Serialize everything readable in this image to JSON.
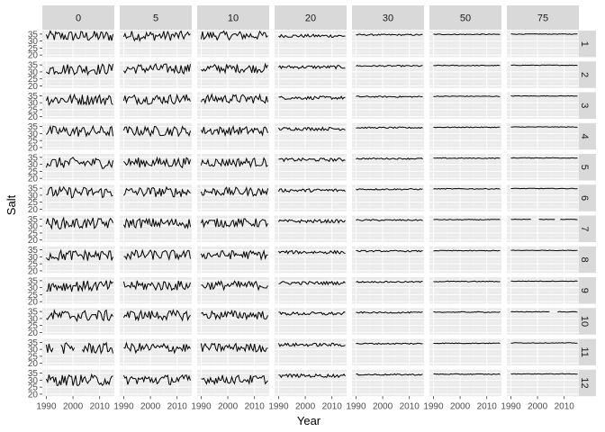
{
  "chart_data": {
    "type": "line",
    "layout": "faceted-grid",
    "xlabel": "Year",
    "ylabel": "Salt",
    "xlim": [
      1988.5,
      2015.5
    ],
    "ylim": [
      18.5,
      37.5
    ],
    "x_ticks": [
      1990,
      2000,
      2010
    ],
    "x_tick_labels": [
      "1990",
      "2000",
      "2010"
    ],
    "y_ticks": [
      20,
      25,
      30,
      35
    ],
    "y_tick_labels": [
      "20",
      "25",
      "30",
      "35"
    ],
    "column_facets": [
      "0",
      "5",
      "10",
      "20",
      "30",
      "50",
      "75"
    ],
    "row_facets": [
      "1",
      "2",
      "3",
      "4",
      "5",
      "6",
      "7",
      "8",
      "9",
      "10",
      "11",
      "12"
    ],
    "year_range": [
      1990,
      2015
    ],
    "facet_profile": {
      "description_of_values": "Each panel is monthly Salt vs Year; values read from panels as mean level (data units) with typical amplitude of variation.",
      "mean_by_column": [
        31.5,
        31.8,
        32.0,
        33.4,
        34.2,
        34.5,
        34.7
      ],
      "amplitude_by_column": [
        4.0,
        3.6,
        3.2,
        1.2,
        0.5,
        0.3,
        0.2
      ],
      "row_offsets": [
        2.0,
        0.5,
        0.8,
        0.0,
        -0.5,
        0.5,
        0.3,
        -0.5,
        -0.3,
        0.5,
        -0.8,
        -1.5
      ],
      "gaps": [
        {
          "column": "75",
          "row": "7",
          "from": 1998,
          "to": 2000
        },
        {
          "column": "75",
          "row": "7",
          "from": 2007,
          "to": 2008
        },
        {
          "column": "75",
          "row": "10",
          "from": 2005,
          "to": 2007
        },
        {
          "column": "0",
          "row": "11",
          "from": 1993,
          "to": 1995
        },
        {
          "column": "0",
          "row": "11",
          "from": 2001,
          "to": 2003
        }
      ]
    },
    "grid": true,
    "legend": "none"
  },
  "colors": {
    "panel_background": "#ebebeb",
    "grid_major": "#ffffff",
    "grid_minor": "#f5f5f5",
    "strip_background": "#d9d9d9",
    "line": "#000000"
  }
}
